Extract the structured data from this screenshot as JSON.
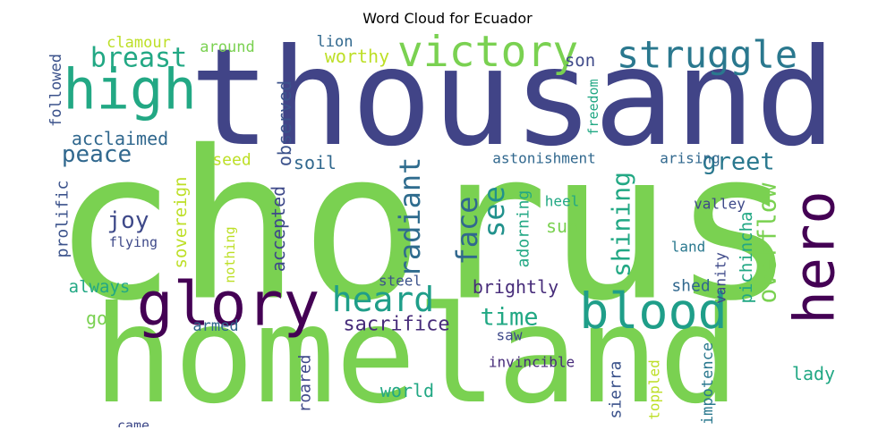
{
  "title": "Word Cloud for Ecuador",
  "words": [
    {
      "text": "chorus",
      "color": "#7ad151",
      "orient": "h"
    },
    {
      "text": "homeland",
      "color": "#7ad151",
      "orient": "h"
    },
    {
      "text": "thousand",
      "color": "#414487",
      "orient": "h"
    },
    {
      "text": "high",
      "color": "#22a884",
      "orient": "h"
    },
    {
      "text": "victory",
      "color": "#7ad151",
      "orient": "h"
    },
    {
      "text": "struggle",
      "color": "#2a788e",
      "orient": "h"
    },
    {
      "text": "breast",
      "color": "#22a884",
      "orient": "h"
    },
    {
      "text": "glory",
      "color": "#440154",
      "orient": "h"
    },
    {
      "text": "blood",
      "color": "#1f9e89",
      "orient": "h"
    },
    {
      "text": "hero",
      "color": "#440154",
      "orient": "v"
    },
    {
      "text": "heard",
      "color": "#1f9e89",
      "orient": "h"
    },
    {
      "text": "peace",
      "color": "#31688e",
      "orient": "h"
    },
    {
      "text": "joy",
      "color": "#3e4989",
      "orient": "h"
    },
    {
      "text": "greet",
      "color": "#2a788e",
      "orient": "h"
    },
    {
      "text": "radiant",
      "color": "#2f6c8e",
      "orient": "v"
    },
    {
      "text": "face",
      "color": "#31688e",
      "orient": "v"
    },
    {
      "text": "see",
      "color": "#21918c",
      "orient": "v"
    },
    {
      "text": "shining",
      "color": "#22a884",
      "orient": "v"
    },
    {
      "text": "overflow",
      "color": "#7ad151",
      "orient": "v"
    },
    {
      "text": "time",
      "color": "#22a884",
      "orient": "h"
    },
    {
      "text": "sacrifice",
      "color": "#472c7a",
      "orient": "h"
    },
    {
      "text": "acclaimed",
      "color": "#31688e",
      "orient": "h"
    },
    {
      "text": "sovereign",
      "color": "#bddf26",
      "orient": "v"
    },
    {
      "text": "prolific",
      "color": "#3b528b",
      "orient": "v"
    },
    {
      "text": "accepted",
      "color": "#3e4989",
      "orient": "v"
    },
    {
      "text": "observed",
      "color": "#3b528b",
      "orient": "v"
    },
    {
      "text": "soil",
      "color": "#31688e",
      "orient": "h"
    },
    {
      "text": "seed",
      "color": "#bddf26",
      "orient": "h"
    },
    {
      "text": "worthy",
      "color": "#bddf26",
      "orient": "h"
    },
    {
      "text": "son",
      "color": "#3e4989",
      "orient": "h"
    },
    {
      "text": "lion",
      "color": "#31688e",
      "orient": "h"
    },
    {
      "text": "clamour",
      "color": "#bddf26",
      "orient": "h"
    },
    {
      "text": "around",
      "color": "#7ad151",
      "orient": "h"
    },
    {
      "text": "followed",
      "color": "#3b528b",
      "orient": "v"
    },
    {
      "text": "freedom",
      "color": "#22a884",
      "orient": "v"
    },
    {
      "text": "astonishment",
      "color": "#31688e",
      "orient": "h"
    },
    {
      "text": "arising",
      "color": "#31688e",
      "orient": "h"
    },
    {
      "text": "adorning",
      "color": "#22a884",
      "orient": "v"
    },
    {
      "text": "sun",
      "color": "#7ad151",
      "orient": "h"
    },
    {
      "text": "heel",
      "color": "#22a884",
      "orient": "h"
    },
    {
      "text": "valley",
      "color": "#3e4989",
      "orient": "h"
    },
    {
      "text": "pichincha",
      "color": "#22a884",
      "orient": "v"
    },
    {
      "text": "land",
      "color": "#2a788e",
      "orient": "h"
    },
    {
      "text": "vanity",
      "color": "#3e4989",
      "orient": "v"
    },
    {
      "text": "flying",
      "color": "#3e4989",
      "orient": "h"
    },
    {
      "text": "nothing",
      "color": "#bddf26",
      "orient": "v"
    },
    {
      "text": "always",
      "color": "#22a884",
      "orient": "h"
    },
    {
      "text": "steel",
      "color": "#3b528b",
      "orient": "h"
    },
    {
      "text": "brightly",
      "color": "#472c7a",
      "orient": "h"
    },
    {
      "text": "shed",
      "color": "#31688e",
      "orient": "h"
    },
    {
      "text": "god",
      "color": "#7ad151",
      "orient": "h"
    },
    {
      "text": "armed",
      "color": "#31688e",
      "orient": "h"
    },
    {
      "text": "saw",
      "color": "#3e4989",
      "orient": "h"
    },
    {
      "text": "invincible",
      "color": "#472c7a",
      "orient": "h"
    },
    {
      "text": "world",
      "color": "#22a884",
      "orient": "h"
    },
    {
      "text": "roared",
      "color": "#3e4989",
      "orient": "v"
    },
    {
      "text": "sierra",
      "color": "#3b528b",
      "orient": "v"
    },
    {
      "text": "toppled",
      "color": "#bddf26",
      "orient": "v"
    },
    {
      "text": "impotence",
      "color": "#2a788e",
      "orient": "v"
    },
    {
      "text": "lady",
      "color": "#22a884",
      "orient": "h"
    },
    {
      "text": "came",
      "color": "#3e4989",
      "orient": "h"
    }
  ]
}
